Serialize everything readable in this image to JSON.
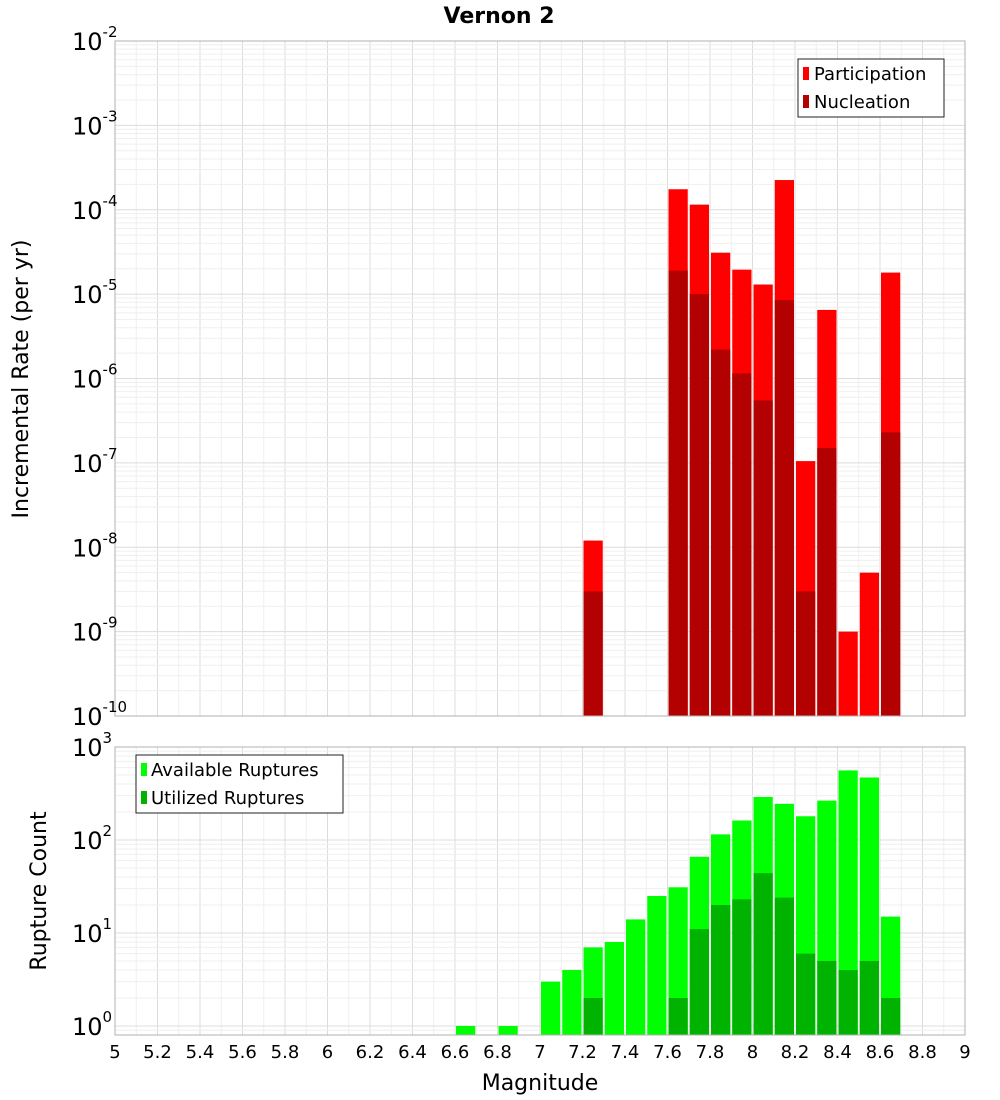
{
  "chart_data": [
    {
      "type": "bar",
      "title": "Vernon 2",
      "xlabel": "",
      "ylabel": "Incremental Rate (per yr)",
      "yscale": "log",
      "xlim": [
        5,
        9
      ],
      "ylim": [
        1e-10,
        0.01
      ],
      "grid": true,
      "legend_position": "top-right",
      "series": [
        {
          "name": "Participation",
          "color": "#ff0000",
          "points": [
            {
              "x": 7.25,
              "y": 1.2e-08
            },
            {
              "x": 7.65,
              "y": 0.000175
            },
            {
              "x": 7.75,
              "y": 0.000115
            },
            {
              "x": 7.85,
              "y": 3.1e-05
            },
            {
              "x": 7.95,
              "y": 1.95e-05
            },
            {
              "x": 8.05,
              "y": 1.3e-05
            },
            {
              "x": 8.15,
              "y": 0.000225
            },
            {
              "x": 8.25,
              "y": 1.05e-07
            },
            {
              "x": 8.35,
              "y": 6.5e-06
            },
            {
              "x": 8.45,
              "y": 1e-09
            },
            {
              "x": 8.55,
              "y": 5e-09
            },
            {
              "x": 8.65,
              "y": 1.8e-05
            }
          ]
        },
        {
          "name": "Nucleation",
          "color": "#b30000",
          "points": [
            {
              "x": 7.25,
              "y": 3e-09
            },
            {
              "x": 7.65,
              "y": 1.9e-05
            },
            {
              "x": 7.75,
              "y": 1e-05
            },
            {
              "x": 7.85,
              "y": 2.2e-06
            },
            {
              "x": 7.95,
              "y": 1.15e-06
            },
            {
              "x": 8.05,
              "y": 5.5e-07
            },
            {
              "x": 8.15,
              "y": 8.5e-06
            },
            {
              "x": 8.25,
              "y": 3e-09
            },
            {
              "x": 8.35,
              "y": 1.5e-07
            },
            {
              "x": 8.65,
              "y": 2.3e-07
            }
          ]
        }
      ]
    },
    {
      "type": "bar",
      "title": "",
      "xlabel": "Magnitude",
      "ylabel": "Rupture Count",
      "yscale": "log",
      "xlim": [
        5,
        9
      ],
      "ylim": [
        0.8,
        1000
      ],
      "grid": true,
      "legend_position": "top-left",
      "x_ticks": [
        "5",
        "5.2",
        "5.4",
        "5.6",
        "5.8",
        "6",
        "6.2",
        "6.4",
        "6.6",
        "6.8",
        "7",
        "7.2",
        "7.4",
        "7.6",
        "7.8",
        "8",
        "8.2",
        "8.4",
        "8.6",
        "8.8",
        "9"
      ],
      "series": [
        {
          "name": "Available Ruptures",
          "color": "#00ff00",
          "points": [
            {
              "x": 6.65,
              "y": 1
            },
            {
              "x": 6.85,
              "y": 1
            },
            {
              "x": 7.05,
              "y": 3
            },
            {
              "x": 7.15,
              "y": 4
            },
            {
              "x": 7.25,
              "y": 7
            },
            {
              "x": 7.35,
              "y": 8
            },
            {
              "x": 7.45,
              "y": 14
            },
            {
              "x": 7.55,
              "y": 25
            },
            {
              "x": 7.65,
              "y": 31
            },
            {
              "x": 7.75,
              "y": 66
            },
            {
              "x": 7.85,
              "y": 115
            },
            {
              "x": 7.95,
              "y": 162
            },
            {
              "x": 8.05,
              "y": 290
            },
            {
              "x": 8.15,
              "y": 245
            },
            {
              "x": 8.25,
              "y": 180
            },
            {
              "x": 8.35,
              "y": 265
            },
            {
              "x": 8.45,
              "y": 560
            },
            {
              "x": 8.55,
              "y": 470
            },
            {
              "x": 8.65,
              "y": 15
            }
          ]
        },
        {
          "name": "Utilized Ruptures",
          "color": "#00b300",
          "points": [
            {
              "x": 7.25,
              "y": 2
            },
            {
              "x": 7.65,
              "y": 2
            },
            {
              "x": 7.75,
              "y": 11
            },
            {
              "x": 7.85,
              "y": 20
            },
            {
              "x": 7.95,
              "y": 23
            },
            {
              "x": 8.05,
              "y": 44
            },
            {
              "x": 8.15,
              "y": 24
            },
            {
              "x": 8.25,
              "y": 6
            },
            {
              "x": 8.35,
              "y": 5
            },
            {
              "x": 8.45,
              "y": 4
            },
            {
              "x": 8.55,
              "y": 5
            },
            {
              "x": 8.65,
              "y": 2
            }
          ]
        }
      ]
    }
  ]
}
